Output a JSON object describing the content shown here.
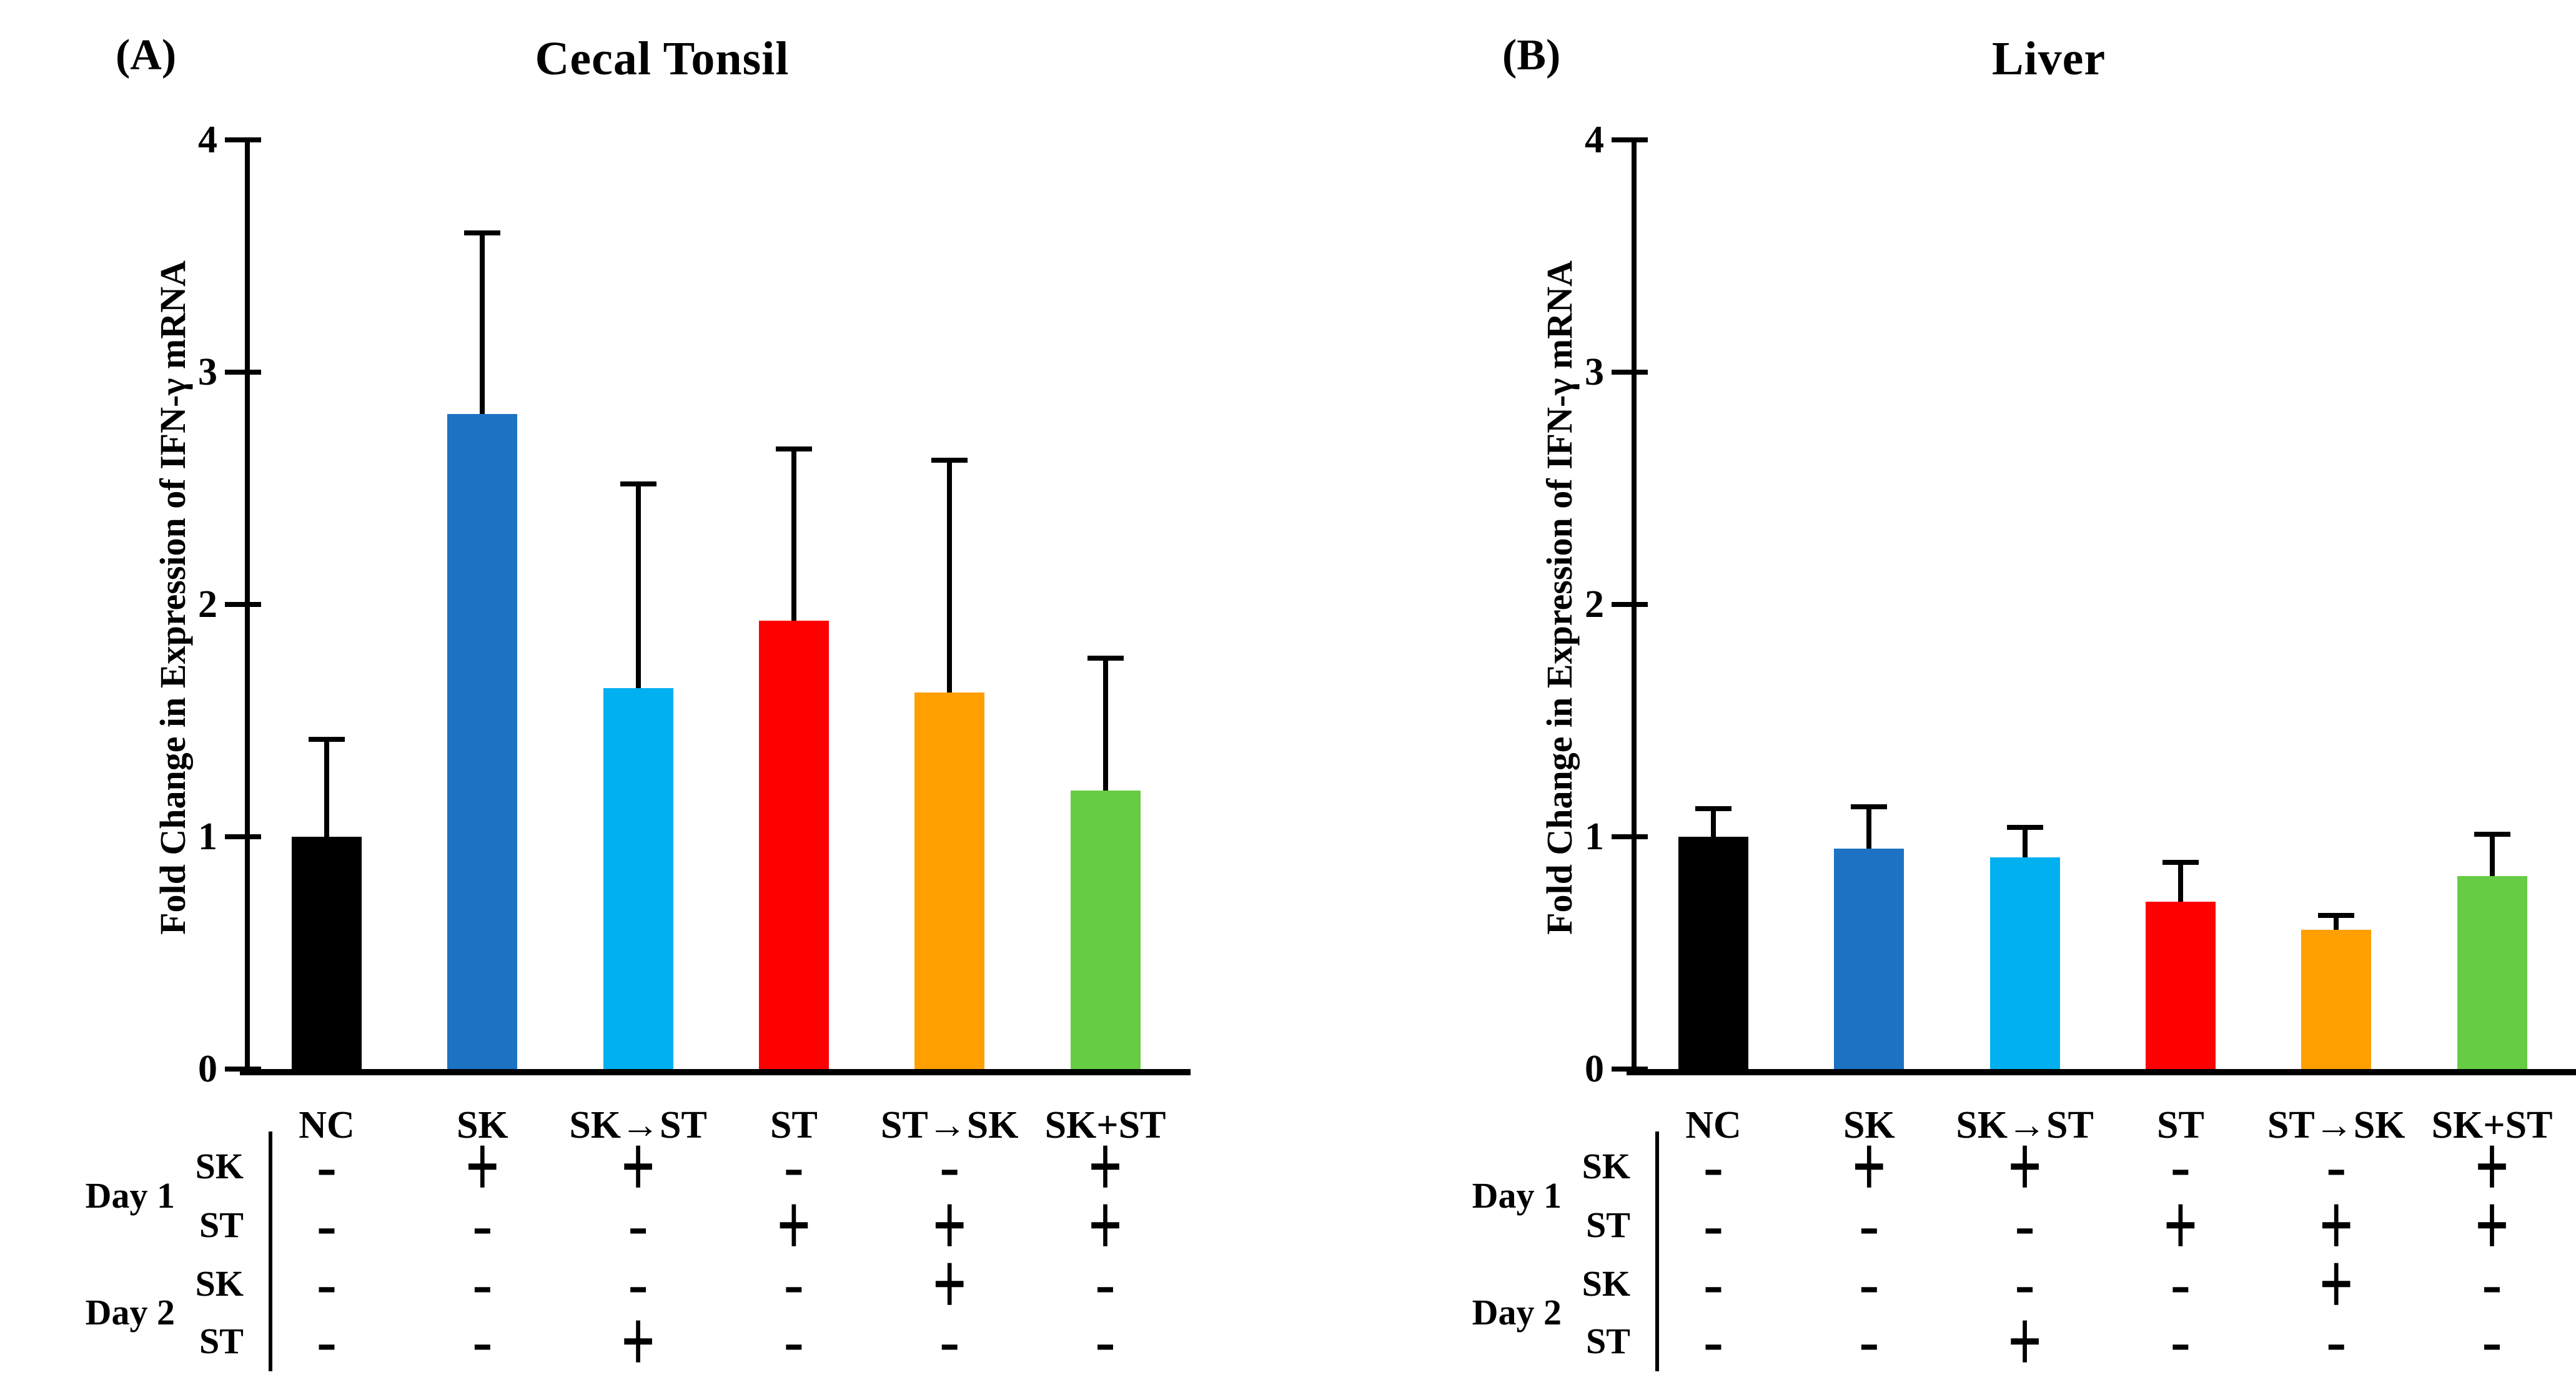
{
  "page": {
    "background": "#FFFFFF"
  },
  "chart_data": [
    {
      "type": "bar",
      "panel_label": "(A)",
      "title": "Cecal Tonsil",
      "xlabel": "",
      "ylabel": "Fold Change in Expression of IFN-γ mRNA",
      "ylim": [
        0,
        4
      ],
      "yticks": [
        0,
        1,
        2,
        3,
        4
      ],
      "grid": false,
      "legend": false,
      "categories": [
        "NC",
        "SK",
        "SK→ST",
        "ST",
        "ST→SK",
        "SK+ST"
      ],
      "values": [
        1.0,
        2.82,
        1.64,
        1.93,
        1.62,
        1.2
      ],
      "errors_up": [
        0.42,
        0.78,
        0.88,
        0.74,
        1.0,
        0.57
      ],
      "bar_colors": [
        "#000000",
        "#1D72C3",
        "#00B0F0",
        "#FF0000",
        "#FF9F00",
        "#65CC43"
      ],
      "treatment_table": {
        "day_labels": [
          "Day 1",
          "Day 2"
        ],
        "rows": [
          {
            "day": "Day 1",
            "agent": "SK",
            "cells": [
              "-",
              "+",
              "+",
              "-",
              "-",
              "+"
            ]
          },
          {
            "day": "Day 1",
            "agent": "ST",
            "cells": [
              "-",
              "-",
              "-",
              "+",
              "+",
              "+"
            ]
          },
          {
            "day": "Day 2",
            "agent": "SK",
            "cells": [
              "-",
              "-",
              "-",
              "-",
              "+",
              "-"
            ]
          },
          {
            "day": "Day 2",
            "agent": "ST",
            "cells": [
              "-",
              "-",
              "+",
              "-",
              "-",
              "-"
            ]
          }
        ]
      }
    },
    {
      "type": "bar",
      "panel_label": "(B)",
      "title": "Liver",
      "xlabel": "",
      "ylabel": "Fold Change in Expression of IFN-γ mRNA",
      "ylim": [
        0,
        4
      ],
      "yticks": [
        0,
        1,
        2,
        3,
        4
      ],
      "grid": false,
      "legend": false,
      "categories": [
        "NC",
        "SK",
        "SK→ST",
        "ST",
        "ST→SK",
        "SK+ST"
      ],
      "values": [
        1.0,
        0.95,
        0.91,
        0.72,
        0.6,
        0.83
      ],
      "errors_up": [
        0.12,
        0.18,
        0.13,
        0.17,
        0.06,
        0.18
      ],
      "bar_colors": [
        "#000000",
        "#1D72C3",
        "#00B0F0",
        "#FF0000",
        "#FF9F00",
        "#65CC43"
      ],
      "treatment_table": {
        "day_labels": [
          "Day 1",
          "Day 2"
        ],
        "rows": [
          {
            "day": "Day 1",
            "agent": "SK",
            "cells": [
              "-",
              "+",
              "+",
              "-",
              "-",
              "+"
            ]
          },
          {
            "day": "Day 1",
            "agent": "ST",
            "cells": [
              "-",
              "-",
              "-",
              "+",
              "+",
              "+"
            ]
          },
          {
            "day": "Day 2",
            "agent": "SK",
            "cells": [
              "-",
              "-",
              "-",
              "-",
              "+",
              "-"
            ]
          },
          {
            "day": "Day 2",
            "agent": "ST",
            "cells": [
              "-",
              "-",
              "+",
              "-",
              "-",
              "-"
            ]
          }
        ]
      }
    }
  ]
}
